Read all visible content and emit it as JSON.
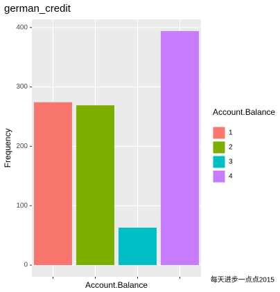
{
  "chart_data": {
    "type": "bar",
    "title": "german_credit",
    "x_label": "Account.Balance",
    "y_label": "Frequency",
    "legend_title": "Account.Balance",
    "categories": [
      "1",
      "2",
      "3",
      "4"
    ],
    "values": [
      274,
      269,
      63,
      394
    ],
    "colors": [
      "#f8766d",
      "#7cae00",
      "#00bfc4",
      "#c77cff"
    ],
    "ylim": [
      -19.7,
      413.7
    ],
    "yticks": [
      0,
      100,
      200,
      300,
      400
    ],
    "grid": true,
    "legend": "right",
    "annotation": "每天进步一点点2015"
  }
}
